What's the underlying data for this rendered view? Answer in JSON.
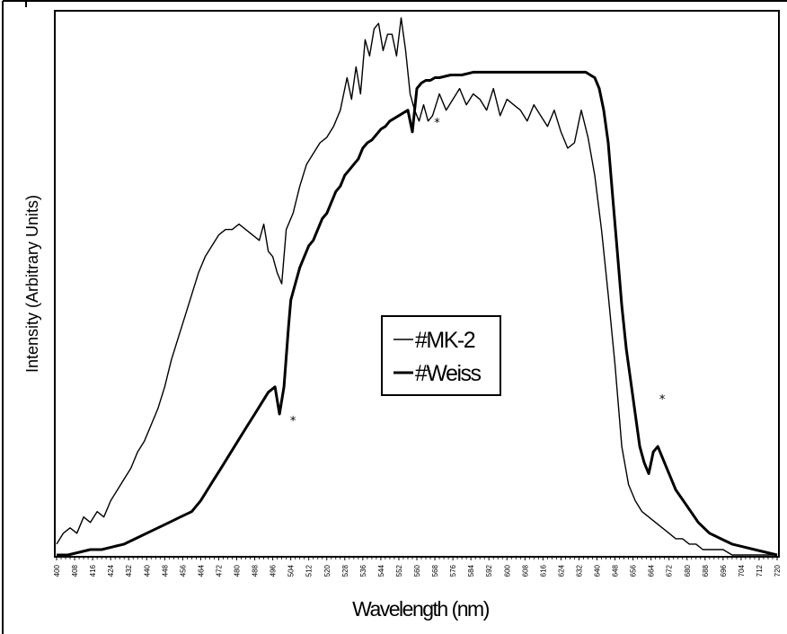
{
  "chart_data": {
    "type": "line",
    "title": "",
    "xlabel": "Wavelength (nm)",
    "ylabel": "Intensity (Arbitrary Units)",
    "xlim": [
      400,
      720
    ],
    "ylim": [
      0,
      100
    ],
    "grid": false,
    "legend_position": "center",
    "x_ticks": [
      400,
      408,
      416,
      424,
      432,
      440,
      448,
      456,
      464,
      472,
      480,
      488,
      496,
      504,
      512,
      520,
      528,
      536,
      544,
      552,
      560,
      568,
      576,
      584,
      592,
      600,
      608,
      616,
      624,
      632,
      640,
      648,
      656,
      664,
      672,
      680,
      688,
      696,
      704,
      712,
      720
    ],
    "x_tick_labels": [
      "400",
      "408",
      "416",
      "424",
      "432",
      "440",
      "448",
      "456",
      "464",
      "472",
      "480",
      "488",
      "496",
      "504",
      "512",
      "520",
      "528",
      "536",
      "544",
      "552",
      "560",
      "568",
      "576",
      "584",
      "592",
      "600",
      "608",
      "616",
      "624",
      "632",
      "640",
      "648",
      "656",
      "664",
      "672",
      "680",
      "688",
      "696",
      "704",
      "712",
      "720"
    ],
    "series": [
      {
        "name": "#MK-2",
        "line_weight": "thin",
        "color": "#000000",
        "x": [
          400,
          403,
          406,
          409,
          412,
          415,
          418,
          421,
          424,
          427,
          430,
          433,
          436,
          439,
          442,
          445,
          448,
          451,
          454,
          457,
          460,
          463,
          466,
          469,
          472,
          475,
          478,
          481,
          484,
          487,
          490,
          492,
          494,
          496,
          498,
          500,
          502,
          505,
          508,
          511,
          514,
          517,
          520,
          523,
          526,
          529,
          531,
          533,
          535,
          537,
          539,
          541,
          543,
          545,
          547,
          549,
          551,
          553,
          555,
          557,
          559,
          561,
          563,
          565,
          567,
          570,
          573,
          576,
          579,
          582,
          585,
          588,
          591,
          594,
          597,
          600,
          603,
          606,
          609,
          612,
          615,
          618,
          621,
          624,
          627,
          630,
          633,
          636,
          639,
          642,
          645,
          648,
          651,
          654,
          657,
          660,
          663,
          666,
          669,
          672,
          675,
          678,
          681,
          684,
          687,
          690,
          693,
          696,
          700,
          705,
          710,
          715,
          720
        ],
        "y": [
          2,
          4,
          5,
          4,
          7,
          6,
          8,
          7,
          10,
          12,
          14,
          16,
          19,
          21,
          24,
          27,
          31,
          36,
          40,
          44,
          48,
          52,
          55,
          57,
          59,
          60,
          60,
          61,
          60,
          59,
          58,
          61,
          56,
          55,
          52,
          50,
          60,
          63,
          68,
          72,
          74,
          76,
          77,
          79,
          82,
          88,
          84,
          90,
          85,
          95,
          92,
          97,
          98,
          93,
          96,
          96,
          92,
          99,
          93,
          85,
          82,
          80,
          83,
          80,
          81,
          85,
          82,
          84,
          86,
          83,
          85,
          84,
          82,
          86,
          81,
          84,
          83,
          82,
          80,
          83,
          81,
          79,
          82,
          78,
          75,
          76,
          82,
          77,
          70,
          60,
          48,
          35,
          20,
          13,
          10,
          8,
          7,
          6,
          5,
          4,
          3,
          3,
          2,
          2,
          1,
          1,
          1,
          1,
          0,
          0,
          0,
          0,
          0
        ]
      },
      {
        "name": "#Weiss",
        "line_weight": "thick",
        "color": "#000000",
        "x": [
          400,
          405,
          410,
          415,
          420,
          425,
          430,
          435,
          440,
          445,
          450,
          455,
          460,
          464,
          467,
          470,
          473,
          476,
          479,
          482,
          485,
          488,
          491,
          494,
          497,
          499,
          501,
          503,
          504,
          506,
          508,
          510,
          512,
          514,
          516,
          518,
          520,
          522,
          524,
          526,
          528,
          530,
          532,
          534,
          536,
          538,
          540,
          542,
          544,
          546,
          548,
          550,
          552,
          554,
          556,
          558,
          560,
          562,
          564,
          566,
          568,
          570,
          575,
          580,
          585,
          590,
          595,
          600,
          605,
          610,
          615,
          620,
          625,
          630,
          635,
          637,
          639,
          641,
          643,
          645,
          647,
          649,
          651,
          653,
          655,
          657,
          659,
          661,
          663,
          665,
          667,
          669,
          671,
          673,
          675,
          680,
          685,
          690,
          695,
          700,
          705,
          710,
          715,
          720
        ],
        "y": [
          0,
          0,
          0.5,
          1,
          1,
          1.5,
          2,
          3,
          4,
          5,
          6,
          7,
          8,
          10,
          12,
          14,
          16,
          18,
          20,
          22,
          24,
          26,
          28,
          30,
          31,
          26,
          31,
          42,
          47,
          50,
          53,
          55,
          57,
          58,
          60,
          62,
          63,
          65,
          67,
          68,
          70,
          71,
          72,
          73,
          75,
          76,
          76.5,
          77.5,
          78.5,
          79,
          80,
          80.5,
          81,
          81.5,
          82,
          78,
          86,
          87,
          87.5,
          87.5,
          88,
          88,
          88.5,
          88.5,
          89,
          89,
          89,
          89,
          89,
          89,
          89,
          89,
          89,
          89,
          89,
          88.5,
          88,
          86,
          82,
          76,
          66,
          56,
          46,
          38,
          32,
          26,
          20,
          17,
          15,
          19,
          20,
          18,
          16,
          14,
          12,
          9,
          6,
          4,
          3,
          2,
          1.5,
          1,
          0.5,
          0
        ]
      }
    ],
    "annotations": [
      {
        "text": "*",
        "x": 505,
        "y": 24
      },
      {
        "text": "*",
        "x": 569,
        "y": 79
      },
      {
        "text": "*",
        "x": 669,
        "y": 28
      }
    ]
  },
  "legend": {
    "items": [
      "#MK-2",
      "#Weiss"
    ]
  }
}
